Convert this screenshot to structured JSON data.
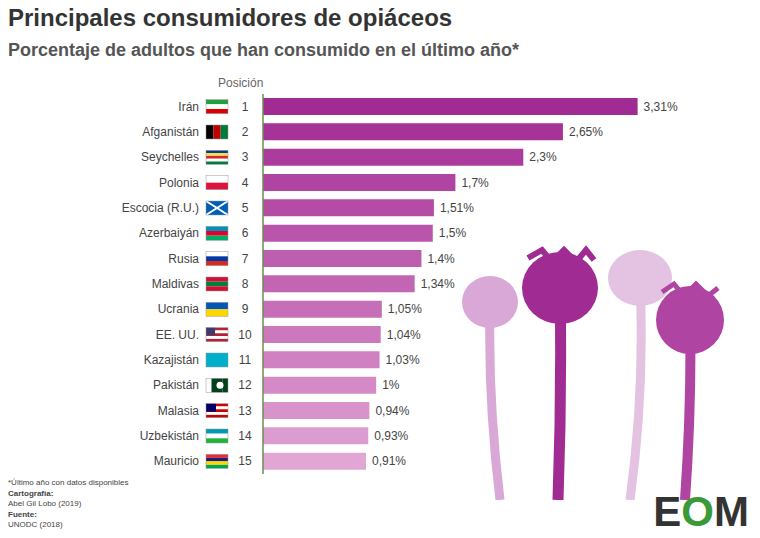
{
  "chart_data": {
    "type": "bar",
    "orientation": "horizontal",
    "title": "Principales consumidores de opiáceos",
    "subtitle": "Porcentaje de adultos que han consumido en el último año*",
    "rank_header": "Posición",
    "categories": [
      "Irán",
      "Afganistán",
      "Seychelles",
      "Polonia",
      "Escocia (R.U.)",
      "Azerbaiyán",
      "Rusia",
      "Maldivas",
      "Ucrania",
      "EE. UU.",
      "Kazajistán",
      "Pakistán",
      "Malasia",
      "Uzbekistán",
      "Mauricio"
    ],
    "ranks": [
      1,
      2,
      3,
      4,
      5,
      6,
      7,
      8,
      9,
      10,
      11,
      12,
      13,
      14,
      15
    ],
    "values": [
      3.31,
      2.65,
      2.3,
      1.7,
      1.51,
      1.5,
      1.4,
      1.34,
      1.05,
      1.04,
      1.03,
      1,
      0.94,
      0.93,
      0.91
    ],
    "value_labels": [
      "3,31%",
      "2,65%",
      "2,3%",
      "1,7%",
      "1,51%",
      "1,5%",
      "1,4%",
      "1,34%",
      "1,05%",
      "1,04%",
      "1,03%",
      "1%",
      "0,94%",
      "0,93%",
      "0,91%"
    ],
    "colors": [
      "#a02b93",
      "#a63398",
      "#ab3c9d",
      "#b044a2",
      "#b44ca6",
      "#b955ab",
      "#bd5eaf",
      "#c266b4",
      "#c66fb8",
      "#cb78bd",
      "#cf81c1",
      "#d48ac6",
      "#d893ca",
      "#dd9ccf",
      "#e1a6d3"
    ],
    "data_labels": true,
    "tick_labels": "y",
    "grid": false,
    "footnote": "*Último año con datos disponibles",
    "credits": [
      {
        "label": "Cartografía:",
        "text": "Abel Gil Lobo (2019)"
      },
      {
        "label": "Fuente:",
        "text": "UNODC (2018)"
      }
    ],
    "logo": "EOM"
  }
}
